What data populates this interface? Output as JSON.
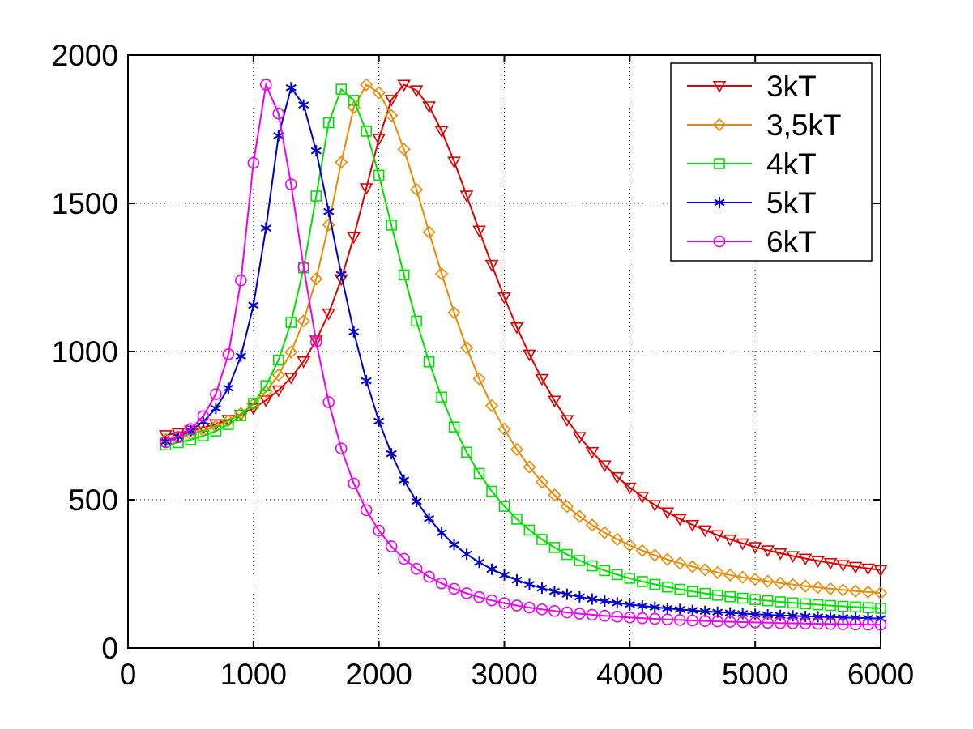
{
  "chart_data": {
    "type": "line",
    "title": "",
    "xlabel": "",
    "ylabel": "",
    "xlim": [
      0,
      6000
    ],
    "ylim": [
      0,
      2000
    ],
    "xticks": [
      "0",
      "1000",
      "2000",
      "3000",
      "4000",
      "5000",
      "6000"
    ],
    "yticks": [
      "0",
      "500",
      "1000",
      "1500",
      "2000"
    ],
    "grid": true,
    "legend_position": "top-right",
    "series": [
      {
        "name": "3kT",
        "color": "#dd0000",
        "marker": "triangle-down",
        "peak_x": 2200,
        "peak_y": 1900,
        "width_left": 520,
        "width_right": 1000,
        "tail": 160,
        "start_y": 660
      },
      {
        "name": "3,5kT",
        "color": "#ee8800",
        "marker": "diamond",
        "peak_x": 1900,
        "peak_y": 1900,
        "width_left": 420,
        "width_right": 830,
        "tail": 120,
        "start_y": 650
      },
      {
        "name": "4kT",
        "color": "#00e000",
        "marker": "square",
        "peak_x": 1700,
        "peak_y": 1885,
        "width_left": 340,
        "width_right": 700,
        "tail": 90,
        "start_y": 640
      },
      {
        "name": "5kT",
        "color": "#0000cc",
        "marker": "asterisk",
        "peak_x": 1300,
        "peak_y": 1890,
        "width_left": 280,
        "width_right": 560,
        "tail": 75,
        "start_y": 635
      },
      {
        "name": "6kT",
        "color": "#ee00ee",
        "marker": "circle",
        "peak_x": 1100,
        "peak_y": 1900,
        "width_left": 210,
        "width_right": 430,
        "tail": 65,
        "start_y": 640
      }
    ],
    "x_start": 300,
    "x_end": 6000,
    "x_step": 100
  }
}
